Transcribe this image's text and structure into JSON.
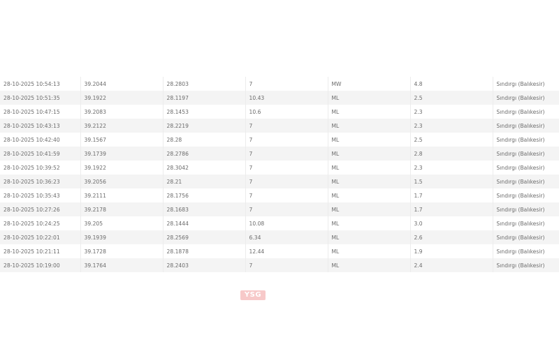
{
  "rows": [
    [
      "28-10-2025 10:54:13",
      "39.2044",
      "28.2803",
      "7",
      "MW",
      "4.8",
      "Sındırgı (Balıkesir)"
    ],
    [
      "28-10-2025 10:51:35",
      "39.1922",
      "28.1197",
      "10.43",
      "ML",
      "2.5",
      "Sındırgı (Balıkesir)"
    ],
    [
      "28-10-2025 10:47:15",
      "39.2083",
      "28.1453",
      "10.6",
      "ML",
      "2.3",
      "Sındırgı (Balıkesir)"
    ],
    [
      "28-10-2025 10:43:13",
      "39.2122",
      "28.2219",
      "7",
      "ML",
      "2.3",
      "Sındırgı (Balıkesir)"
    ],
    [
      "28-10-2025 10:42:40",
      "39.1567",
      "28.28",
      "7",
      "ML",
      "2.5",
      "Sındırgı (Balıkesir)"
    ],
    [
      "28-10-2025 10:41:59",
      "39.1739",
      "28.2786",
      "7",
      "ML",
      "2.8",
      "Sındırgı (Balıkesir)"
    ],
    [
      "28-10-2025 10:39:52",
      "39.1922",
      "28.3042",
      "7",
      "ML",
      "2.3",
      "Sındırgı (Balıkesir)"
    ],
    [
      "28-10-2025 10:36:23",
      "39.2056",
      "28.21",
      "7",
      "ML",
      "1.5",
      "Sındırgı (Balıkesir)"
    ],
    [
      "28-10-2025 10:35:43",
      "39.2111",
      "28.1756",
      "7",
      "ML",
      "1.7",
      "Sındırgı (Balıkesir)"
    ],
    [
      "28-10-2025 10:27:26",
      "39.2178",
      "28.1683",
      "7",
      "ML",
      "1.7",
      "Sındırgı (Balıkesir)"
    ],
    [
      "28-10-2025 10:24:25",
      "39.205",
      "28.1444",
      "10.08",
      "ML",
      "3.0",
      "Sındırgı (Balıkesir)"
    ],
    [
      "28-10-2025 10:22:01",
      "39.1939",
      "28.2569",
      "6.34",
      "ML",
      "2.6",
      "Sındırgı (Balıkesir)"
    ],
    [
      "28-10-2025 10:21:11",
      "39.1728",
      "28.1878",
      "12.44",
      "ML",
      "1.9",
      "Sındırgı (Balıkesir)"
    ],
    [
      "28-10-2025 10:19:00",
      "39.1764",
      "28.2403",
      "7",
      "ML",
      "2.4",
      "Sındırgı (Balıkesir)"
    ]
  ],
  "logo": {
    "text": "YSG",
    "color": "#f7c9c9"
  }
}
